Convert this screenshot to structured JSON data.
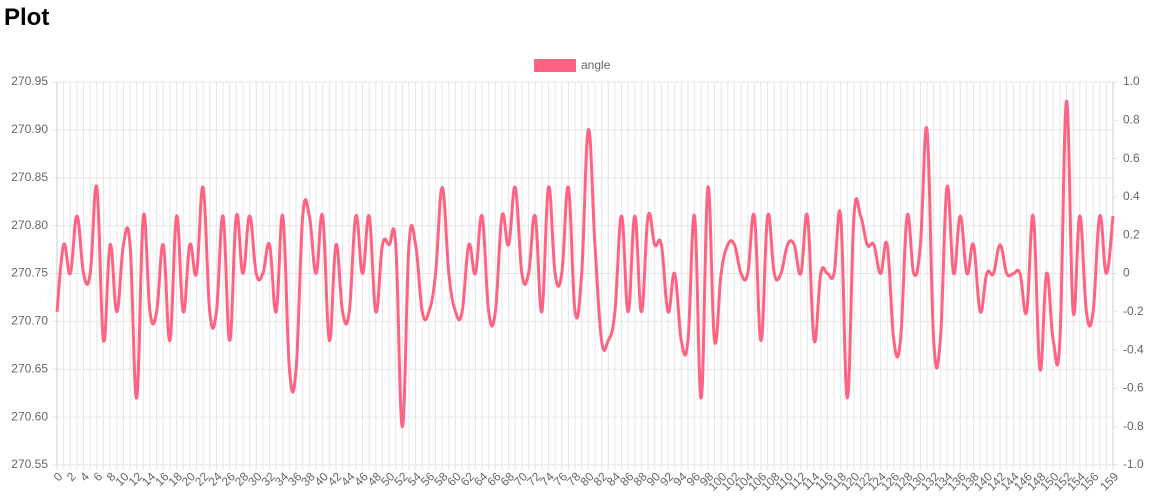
{
  "page": {
    "heading": "Plot"
  },
  "chart_data": {
    "type": "line",
    "categories": [
      "0",
      null,
      "2",
      null,
      "4",
      null,
      "6",
      null,
      "8",
      null,
      "10",
      null,
      "12",
      null,
      "14",
      null,
      "16",
      null,
      "18",
      null,
      "20",
      null,
      "22",
      null,
      "24",
      null,
      "26",
      null,
      "28",
      null,
      "30",
      null,
      "32",
      null,
      "34",
      null,
      "36",
      null,
      "38",
      null,
      "40",
      null,
      "42",
      null,
      "44",
      null,
      "46",
      null,
      "48",
      null,
      "50",
      null,
      "52",
      null,
      "54",
      null,
      "56",
      null,
      "58",
      null,
      "60",
      null,
      "62",
      null,
      "64",
      null,
      "66",
      null,
      "68",
      null,
      "70",
      null,
      "72",
      null,
      "74",
      null,
      "76",
      null,
      "78",
      null,
      "80",
      null,
      "82",
      null,
      "84",
      null,
      "86",
      null,
      "88",
      null,
      "90",
      null,
      "92",
      null,
      "94",
      null,
      "96",
      null,
      "98",
      null,
      "100",
      null,
      "102",
      null,
      "104",
      null,
      "106",
      null,
      "108",
      null,
      "110",
      null,
      "112",
      null,
      "114",
      null,
      "116",
      null,
      "118",
      null,
      "120",
      null,
      "122",
      null,
      "124",
      null,
      "126",
      null,
      "128",
      null,
      "130",
      null,
      "132",
      null,
      "134",
      null,
      "136",
      null,
      "138",
      null,
      "140",
      null,
      "142",
      null,
      "144",
      null,
      "146",
      null,
      "148",
      null,
      "150",
      null,
      "152",
      null,
      "154",
      null,
      "156",
      null,
      null,
      "159"
    ],
    "series": [
      {
        "name": "angle",
        "color": "#ff6384",
        "values": [
          270.71,
          270.78,
          270.75,
          270.81,
          270.75,
          270.75,
          270.84,
          270.68,
          270.78,
          270.71,
          270.78,
          270.78,
          270.62,
          270.81,
          270.71,
          270.71,
          270.78,
          270.68,
          270.81,
          270.71,
          270.78,
          270.75,
          270.84,
          270.71,
          270.71,
          270.81,
          270.68,
          270.81,
          270.75,
          270.81,
          270.75,
          270.75,
          270.78,
          270.71,
          270.81,
          270.65,
          270.65,
          270.81,
          270.81,
          270.75,
          270.81,
          270.68,
          270.78,
          270.71,
          270.71,
          270.81,
          270.75,
          270.81,
          270.71,
          270.78,
          270.78,
          270.78,
          270.59,
          270.78,
          270.78,
          270.71,
          270.71,
          270.75,
          270.84,
          270.75,
          270.71,
          270.71,
          270.78,
          270.75,
          270.81,
          270.71,
          270.71,
          270.81,
          270.78,
          270.84,
          270.75,
          270.75,
          270.81,
          270.71,
          270.84,
          270.75,
          270.75,
          270.84,
          270.71,
          270.75,
          270.9,
          270.78,
          270.68,
          270.68,
          270.71,
          270.81,
          270.71,
          270.81,
          270.71,
          270.81,
          270.78,
          270.78,
          270.71,
          270.75,
          270.68,
          270.68,
          270.81,
          270.62,
          270.84,
          270.68,
          270.75,
          270.78,
          270.78,
          270.75,
          270.75,
          270.81,
          270.68,
          270.81,
          270.75,
          270.75,
          270.78,
          270.78,
          270.75,
          270.81,
          270.68,
          270.75,
          270.75,
          270.75,
          270.81,
          270.62,
          270.81,
          270.81,
          270.78,
          270.78,
          270.75,
          270.78,
          270.68,
          270.68,
          270.81,
          270.75,
          270.78,
          270.9,
          270.68,
          270.68,
          270.84,
          270.75,
          270.81,
          270.75,
          270.78,
          270.71,
          270.75,
          270.75,
          270.78,
          270.75,
          270.75,
          270.75,
          270.71,
          270.81,
          270.65,
          270.75,
          270.68,
          270.68,
          270.93,
          270.71,
          270.81,
          270.71,
          270.71,
          270.81,
          270.75,
          270.81
        ]
      }
    ],
    "ylim": [
      270.55,
      270.95
    ],
    "yticks": [
      270.55,
      {
        "value": 270.6,
        "label": "270.60"
      },
      270.65,
      {
        "value": 270.7,
        "label": "270.70"
      },
      270.75,
      {
        "value": 270.8,
        "label": "270.80"
      },
      270.85,
      {
        "value": 270.9,
        "label": "270.90"
      },
      270.95
    ],
    "y2lim": [
      -1,
      1
    ],
    "y2ticks": [
      {
        "value": -1,
        "label": "-1.0"
      },
      -0.8,
      -0.6,
      -0.4,
      -0.2,
      0,
      0.2,
      0.4,
      0.6,
      0.8,
      {
        "value": 1,
        "label": "1.0"
      }
    ],
    "grid": true,
    "legend": "top"
  }
}
